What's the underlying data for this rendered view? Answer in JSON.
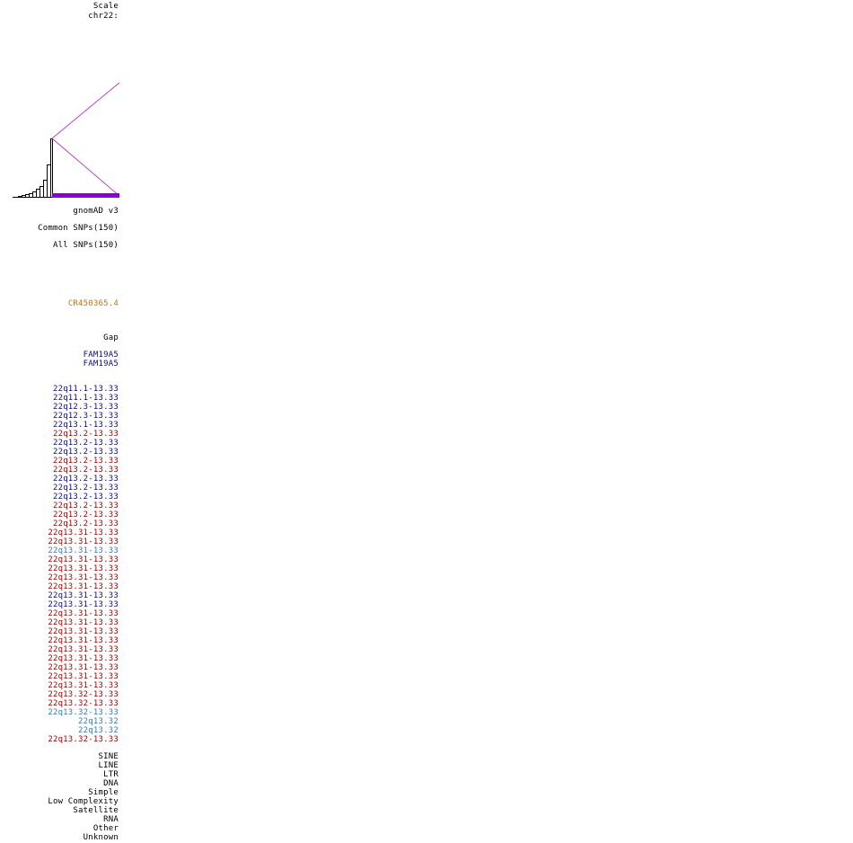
{
  "header": {
    "scale_label": "Scale",
    "chrom_label": "chr22:"
  },
  "colors": {
    "black": "#000000",
    "blue": "#0c0c78",
    "red": "#990000",
    "light_blue": "#3c78b4",
    "gold": "#b4781e",
    "magenta": "#c040c0",
    "purple": "#8a00d0",
    "gnomad": "#1e0096"
  },
  "tracks": {
    "gnomad": "gnomAD v3",
    "common_snps": "Common SNPs(150)",
    "all_snps": "All SNPs(150)",
    "gene_cr": "CR450365.4",
    "gap": "Gap",
    "fam_1": "FAM19A5",
    "fam_2": "FAM19A5"
  },
  "bands": [
    {
      "text": "22q11.1-13.33",
      "color": "#0c0c78"
    },
    {
      "text": "22q11.1-13.33",
      "color": "#0c0c78"
    },
    {
      "text": "22q12.3-13.33",
      "color": "#0c0c78"
    },
    {
      "text": "22q12.3-13.33",
      "color": "#0c0c78"
    },
    {
      "text": "22q13.1-13.33",
      "color": "#0c0c78"
    },
    {
      "text": "22q13.2-13.33",
      "color": "#990000"
    },
    {
      "text": "22q13.2-13.33",
      "color": "#0c0c78"
    },
    {
      "text": "22q13.2-13.33",
      "color": "#0c0c78"
    },
    {
      "text": "22q13.2-13.33",
      "color": "#990000"
    },
    {
      "text": "22q13.2-13.33",
      "color": "#990000"
    },
    {
      "text": "22q13.2-13.33",
      "color": "#0c0c78"
    },
    {
      "text": "22q13.2-13.33",
      "color": "#0c0c78"
    },
    {
      "text": "22q13.2-13.33",
      "color": "#0c0c78"
    },
    {
      "text": "22q13.2-13.33",
      "color": "#990000"
    },
    {
      "text": "22q13.2-13.33",
      "color": "#990000"
    },
    {
      "text": "22q13.2-13.33",
      "color": "#990000"
    },
    {
      "text": "22q13.31-13.33",
      "color": "#990000"
    },
    {
      "text": "22q13.31-13.33",
      "color": "#990000"
    },
    {
      "text": "22q13.31-13.33",
      "color": "#3c78b4"
    },
    {
      "text": "22q13.31-13.33",
      "color": "#990000"
    },
    {
      "text": "22q13.31-13.33",
      "color": "#990000"
    },
    {
      "text": "22q13.31-13.33",
      "color": "#990000"
    },
    {
      "text": "22q13.31-13.33",
      "color": "#990000"
    },
    {
      "text": "22q13.31-13.33",
      "color": "#0c0c78"
    },
    {
      "text": "22q13.31-13.33",
      "color": "#0c0c78"
    },
    {
      "text": "22q13.31-13.33",
      "color": "#990000"
    },
    {
      "text": "22q13.31-13.33",
      "color": "#990000"
    },
    {
      "text": "22q13.31-13.33",
      "color": "#990000"
    },
    {
      "text": "22q13.31-13.33",
      "color": "#990000"
    },
    {
      "text": "22q13.31-13.33",
      "color": "#990000"
    },
    {
      "text": "22q13.31-13.33",
      "color": "#990000"
    },
    {
      "text": "22q13.31-13.33",
      "color": "#990000"
    },
    {
      "text": "22q13.31-13.33",
      "color": "#990000"
    },
    {
      "text": "22q13.31-13.33",
      "color": "#990000"
    },
    {
      "text": "22q13.32-13.33",
      "color": "#990000"
    },
    {
      "text": "22q13.32-13.33",
      "color": "#990000"
    },
    {
      "text": "22q13.32-13.33",
      "color": "#3c78b4"
    },
    {
      "text": "22q13.32",
      "color": "#3c78b4"
    },
    {
      "text": "22q13.32",
      "color": "#3c78b4"
    },
    {
      "text": "22q13.32-13.33",
      "color": "#990000"
    }
  ],
  "repeats": [
    "SINE",
    "LINE",
    "LTR",
    "DNA",
    "Simple",
    "Low Complexity",
    "Satellite",
    "RNA",
    "Other",
    "Unknown"
  ]
}
